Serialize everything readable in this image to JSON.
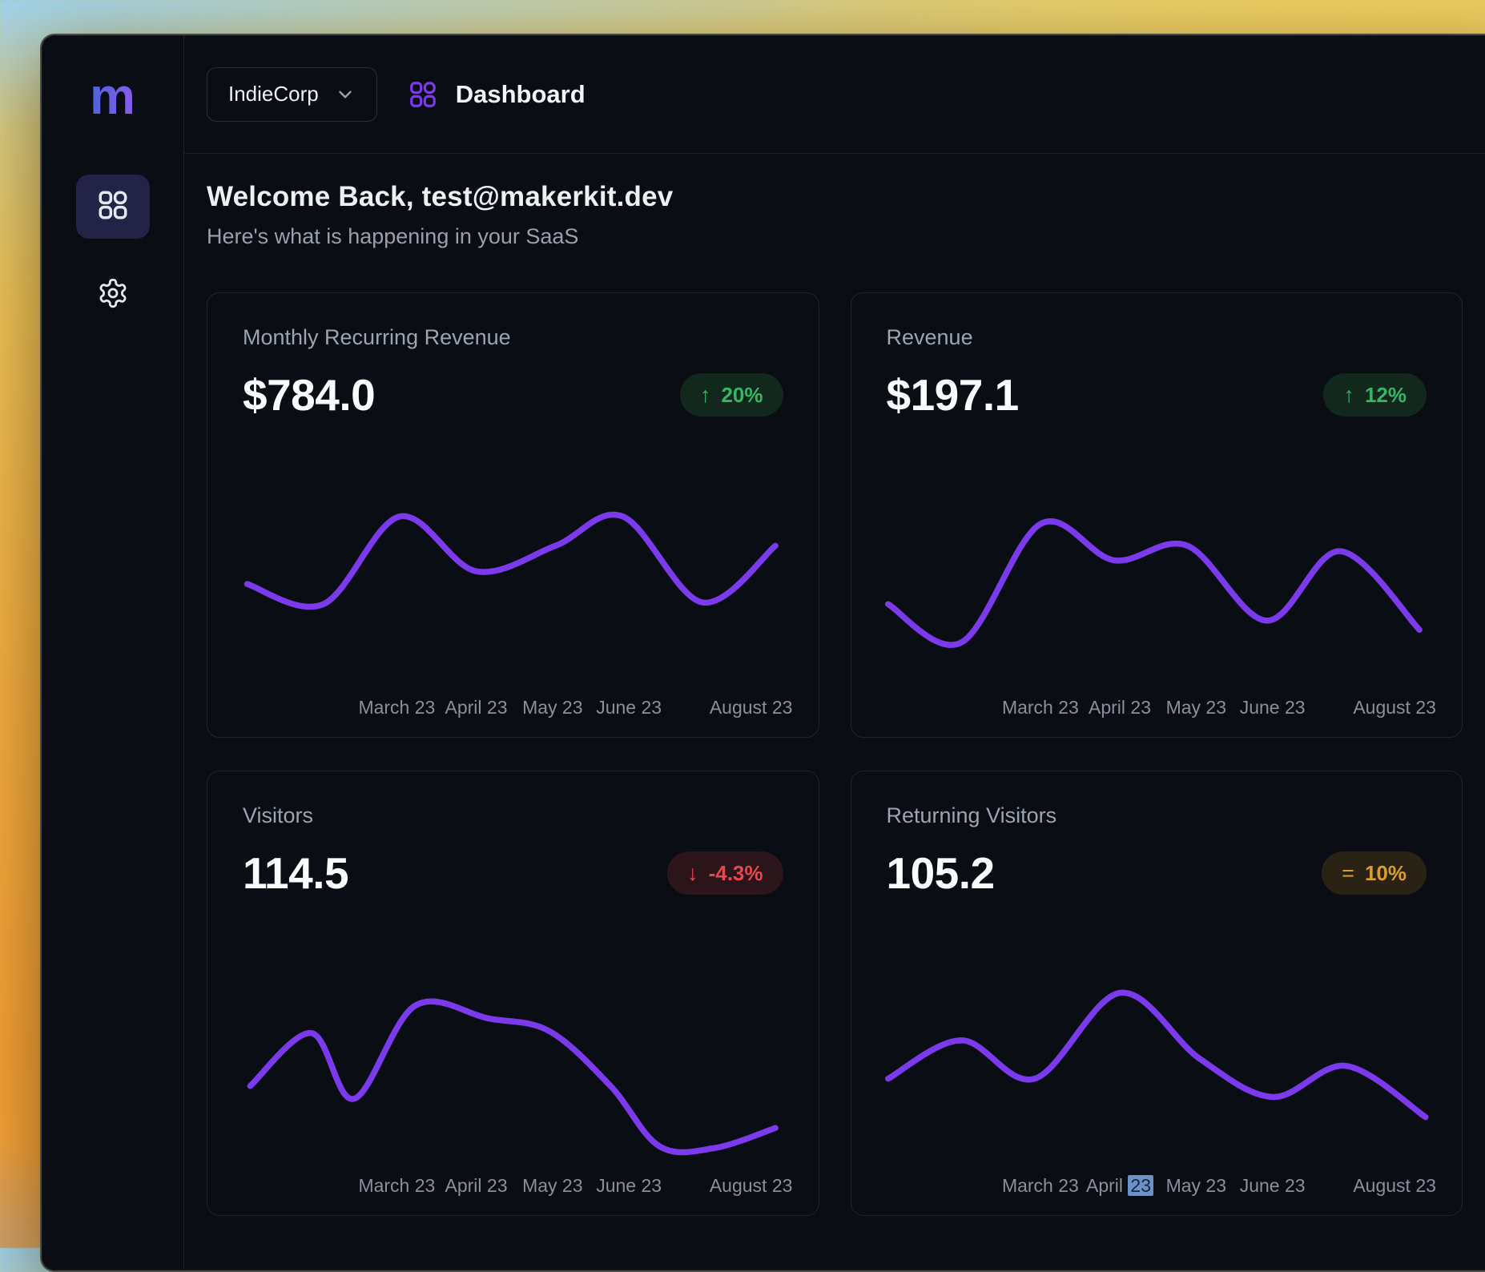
{
  "sidebar": {
    "logo_text": "m",
    "items": [
      {
        "label": "Dashboard",
        "icon": "dashboard-grid-icon",
        "active": true
      },
      {
        "label": "Settings",
        "icon": "gear-icon",
        "active": false
      }
    ]
  },
  "header": {
    "org_name": "IndieCorp",
    "page_title": "Dashboard"
  },
  "welcome": {
    "title": "Welcome Back, test@makerkit.dev",
    "subtitle": "Here's what is happening in your SaaS"
  },
  "cards": [
    {
      "title": "Monthly Recurring Revenue",
      "value": "$784.0",
      "trend": {
        "direction": "up",
        "label": "20%",
        "color": "green"
      }
    },
    {
      "title": "Revenue",
      "value": "$197.1",
      "trend": {
        "direction": "up",
        "label": "12%",
        "color": "green"
      }
    },
    {
      "title": "Visitors",
      "value": "114.5",
      "trend": {
        "direction": "down",
        "label": "-4.3%",
        "color": "red"
      }
    },
    {
      "title": "Returning Visitors",
      "value": "105.2",
      "trend": {
        "direction": "flat",
        "label": "10%",
        "color": "amber"
      }
    }
  ],
  "x_axis": {
    "ticks": [
      {
        "label": "March 23",
        "pos": 31
      },
      {
        "label": "April 23",
        "pos": 44
      },
      {
        "label": "May 23",
        "pos": 56.5
      },
      {
        "label": "June 23",
        "pos": 69
      },
      {
        "label": "August 23",
        "pos": 89
      }
    ]
  },
  "chart_data": [
    {
      "type": "line",
      "title": "Monthly Recurring Revenue",
      "x_categories": [
        "March 23",
        "April 23",
        "May 23",
        "June 23",
        "August 23"
      ],
      "y_axis_visible": false,
      "grid": false,
      "legend": false,
      "line_color": "#7c3aed",
      "units": "relative height, points are [x_percent, value_0_to_100]",
      "series": [
        {
          "name": "MRR",
          "points": [
            [
              6.5,
              53
            ],
            [
              19,
              42
            ],
            [
              31.5,
              90
            ],
            [
              44,
              60
            ],
            [
              57,
              74
            ],
            [
              68,
              90
            ],
            [
              81,
              43
            ],
            [
              93,
              74
            ]
          ]
        }
      ]
    },
    {
      "type": "line",
      "title": "Revenue",
      "x_categories": [
        "March 23",
        "April 23",
        "May 23",
        "June 23",
        "August 23"
      ],
      "y_axis_visible": false,
      "grid": false,
      "legend": false,
      "line_color": "#7c3aed",
      "units": "relative height, points are [x_percent, value_0_to_100]",
      "series": [
        {
          "name": "Revenue",
          "points": [
            [
              6,
              42
            ],
            [
              18,
              21
            ],
            [
              31,
              86
            ],
            [
              43,
              66
            ],
            [
              55,
              74
            ],
            [
              68,
              33
            ],
            [
              80,
              71
            ],
            [
              93,
              28
            ]
          ]
        }
      ]
    },
    {
      "type": "line",
      "title": "Visitors",
      "x_categories": [
        "March 23",
        "April 23",
        "May 23",
        "June 23",
        "August 23"
      ],
      "y_axis_visible": false,
      "grid": false,
      "legend": false,
      "line_color": "#7c3aed",
      "units": "relative height, points are [x_percent, value_0_to_100]",
      "series": [
        {
          "name": "Visitors",
          "points": [
            [
              7,
              40
            ],
            [
              17,
              69
            ],
            [
              24,
              33
            ],
            [
              34,
              84
            ],
            [
              46,
              77
            ],
            [
              56,
              70
            ],
            [
              66,
              40
            ],
            [
              74,
              7
            ],
            [
              83,
              6
            ],
            [
              93,
              17
            ]
          ]
        }
      ]
    },
    {
      "type": "line",
      "title": "Returning Visitors",
      "x_categories": [
        "March 23",
        "April 23",
        "May 23",
        "June 23",
        "August 23"
      ],
      "y_axis_visible": false,
      "grid": false,
      "legend": false,
      "line_color": "#7c3aed",
      "units": "relative height, points are [x_percent, value_0_to_100]",
      "highlight": {
        "tick_index": 1,
        "selected_text": "23",
        "note": "the '23' of 'April 23' shows a blue text-selection highlight"
      },
      "series": [
        {
          "name": "Returning Visitors",
          "points": [
            [
              6,
              44
            ],
            [
              18,
              65
            ],
            [
              30,
              44
            ],
            [
              44,
              91
            ],
            [
              57,
              55
            ],
            [
              69,
              34
            ],
            [
              81,
              51
            ],
            [
              94,
              23
            ]
          ]
        }
      ]
    }
  ],
  "colors": {
    "line_purple": "#7c3aed",
    "accent_purple": "#7c3aed",
    "logo_gradient_start": "#4c63d6",
    "logo_gradient_end": "#8a5cf0",
    "badge_green": "#35b565",
    "badge_red": "#e5484d",
    "badge_amber": "#d7a02c",
    "selection_blue": "#6b91c7",
    "app_background": "#0a0d14"
  },
  "glyphs": {
    "up": "↑",
    "down": "↓",
    "flat": "="
  }
}
